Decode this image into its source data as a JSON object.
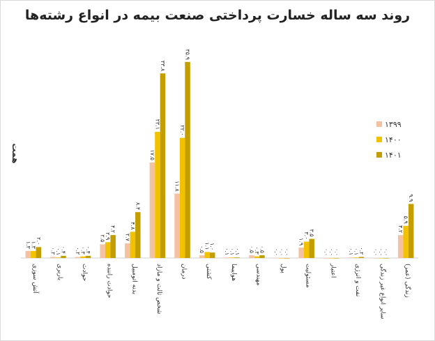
{
  "chart_data": {
    "type": "bar",
    "title": "روند سه ساله خسارت پرداختی صنعت بیمه در انواع رشته‌ها",
    "y_label": "همت",
    "categories": [
      "آتش سوزی",
      "باربری",
      "حوادث",
      "حوادث راننده",
      "بدنه اتومبیل",
      "شخص ثالث و مازاد",
      "درمان",
      "کشتی",
      "هواپیما",
      "مهندسی",
      "پول",
      "مسئولیت",
      "اعتبار",
      "نفت و انرژی",
      "سایر انواع غیر زندگی",
      "زندگی (عمر)"
    ],
    "series": [
      {
        "name": "۱۳۹۹",
        "color": "#f4c2a0",
        "values": [
          1.3,
          0.2,
          0.2,
          2.5,
          2.7,
          17.5,
          11.8,
          0.5,
          0.1,
          0.5,
          0.0,
          1.9,
          0.0,
          0.1,
          0.0,
          4.2
        ],
        "value_labels": [
          "۱.۳",
          "۰.۲",
          "۰.۲",
          "۲.۵",
          "۲.۷",
          "۱۷.۵",
          "۱۱.۸",
          "۰.۵",
          "۰.۱",
          "۰.۵",
          "۰.۰",
          "۱.۹",
          "۰.۰",
          "۰.۱",
          "۰.۰",
          "۴.۲"
        ]
      },
      {
        "name": "۱۴۰۰",
        "color": "#f2c200",
        "values": [
          1.3,
          0.1,
          0.3,
          2.9,
          4.8,
          23.1,
          22.0,
          1.1,
          0.1,
          0.3,
          0.0,
          3.0,
          0.0,
          0.1,
          0.0,
          5.9
        ],
        "value_labels": [
          "۱.۳",
          "۰.۱",
          "۰.۳",
          "۲.۹",
          "۴.۸",
          "۲۳.۱",
          "۲۲.۰",
          "۱.۱",
          "۰.۱",
          "۰.۳",
          "۰.۰",
          "۳.۰",
          "۰.۰",
          "۰.۱",
          "۰.۰",
          "۵.۹"
        ]
      },
      {
        "name": "۱۴۰۱",
        "color": "#c29e00",
        "values": [
          2.0,
          0.4,
          0.4,
          4.2,
          8.4,
          33.8,
          35.9,
          1.0,
          0.1,
          0.5,
          0.0,
          3.5,
          0.0,
          0.2,
          0.0,
          9.9
        ],
        "value_labels": [
          "۲.۰",
          "۰.۴",
          "۰.۴",
          "۴.۲",
          "۸.۴",
          "۳۳.۸",
          "۳۵.۹",
          "۱.۰",
          "۰.۱",
          "۰.۵",
          "۰.۰",
          "۳.۵",
          "۰.۰",
          "۰.۲",
          "۰.۰",
          "۹.۹"
        ]
      }
    ],
    "ylim": [
      0,
      36
    ],
    "legend": "right"
  }
}
